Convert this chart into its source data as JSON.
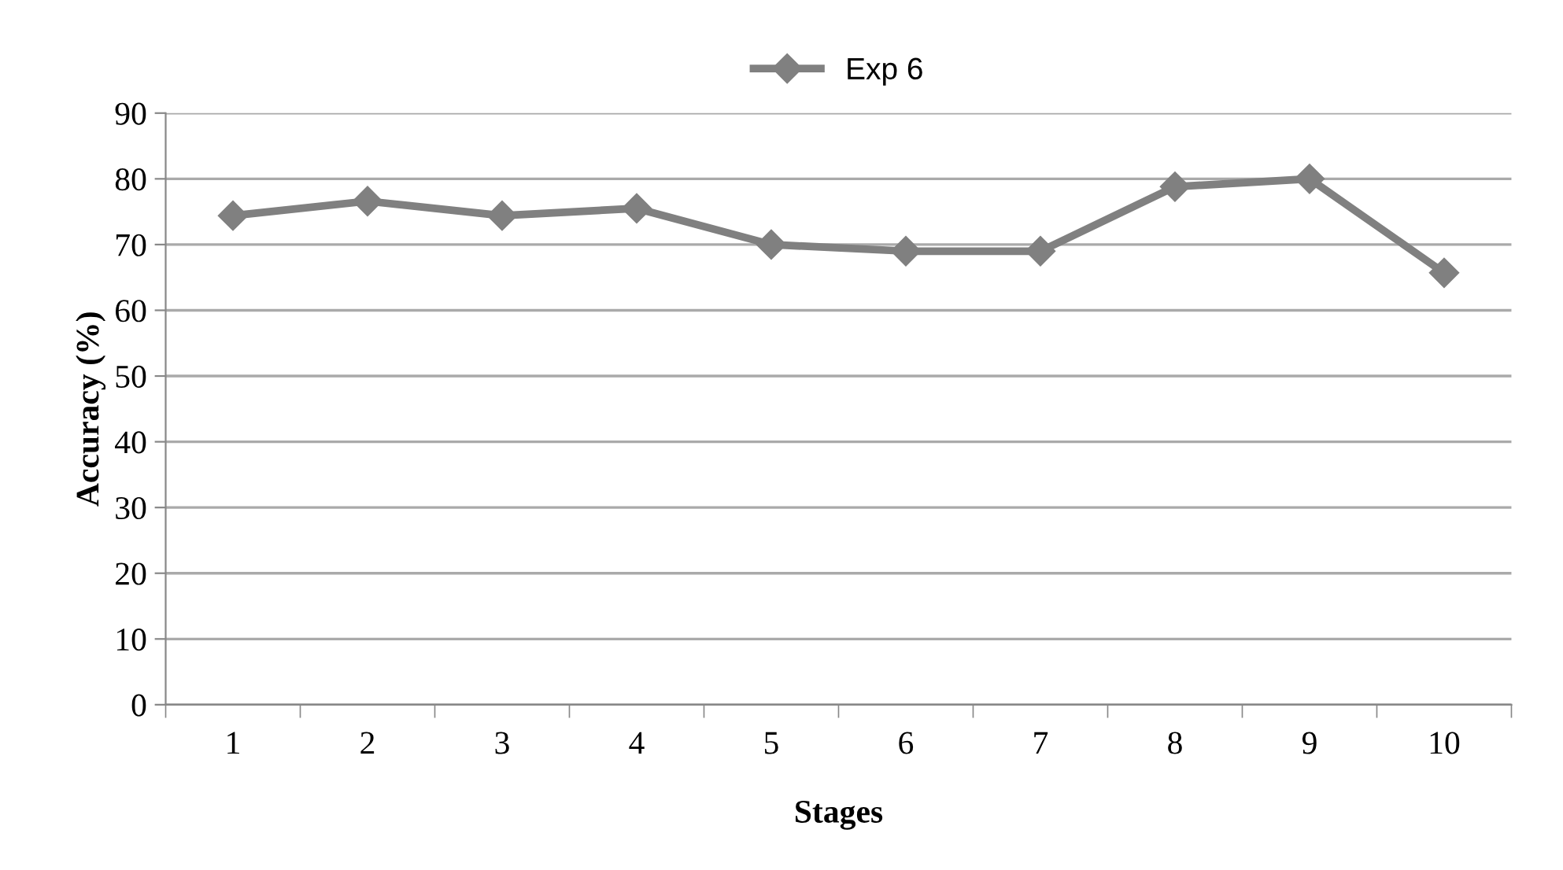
{
  "chart_data": {
    "type": "line",
    "xlabel": "Stages",
    "ylabel": "Accuracy (%)",
    "categories": [
      "1",
      "2",
      "3",
      "4",
      "5",
      "6",
      "7",
      "8",
      "9",
      "10"
    ],
    "series": [
      {
        "name": "Exp 6",
        "color": "#808080",
        "values": [
          74.4,
          76.6,
          74.4,
          75.5,
          70,
          69,
          69,
          78.8,
          80,
          65.7
        ]
      }
    ],
    "ylim": [
      0,
      90
    ],
    "yticks": [
      0,
      10,
      20,
      30,
      40,
      50,
      60,
      70,
      80,
      90
    ],
    "grid": "y",
    "legend": "top",
    "marker": "diamond",
    "line_style": "solid"
  }
}
